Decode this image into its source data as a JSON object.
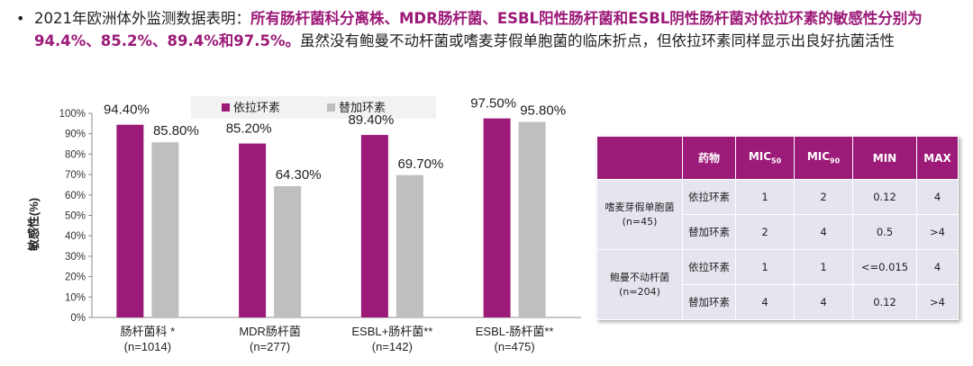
{
  "bullet": {
    "symbol": "•",
    "part1": "2021年欧洲体外监测数据表明：",
    "highlight": "所有肠杆菌科分离株、MDR肠杆菌、ESBL阳性肠杆菌和ESBL阴性肠杆菌对依拉环素的敏感性分别为94.4%、85.2%、89.4%和97.5%。",
    "part2": "虽然没有鲍曼不动杆菌或嗜麦芽假单胞菌的临床折点，但依拉环素同样显示出良好抗菌活性"
  },
  "chart_data": {
    "type": "bar",
    "title": "",
    "xlabel": "",
    "ylabel": "敏感性(%)",
    "ylim": [
      0,
      100
    ],
    "yticks": [
      "0%",
      "10%",
      "20%",
      "30%",
      "40%",
      "50%",
      "60%",
      "70%",
      "80%",
      "90%",
      "100%"
    ],
    "legend_position": "top",
    "categories": [
      {
        "name": "肠杆菌科 *",
        "n": "(n=1014)"
      },
      {
        "name": "MDR肠杆菌",
        "n": "(n=277)"
      },
      {
        "name": "ESBL+肠杆菌**",
        "n": "(n=142)"
      },
      {
        "name": "ESBL-肠杆菌**",
        "n": "(n=475)"
      }
    ],
    "series": [
      {
        "name": "依拉环素",
        "color": "#9c1a78",
        "values": [
          94.4,
          85.2,
          89.4,
          97.5
        ],
        "labels": [
          "94.40%",
          "85.20%",
          "89.40%",
          "97.50%"
        ]
      },
      {
        "name": "替加环素",
        "color": "#bfbfbf",
        "values": [
          85.8,
          64.3,
          69.7,
          95.8
        ],
        "labels": [
          "85.80%",
          "64.30%",
          "69.70%",
          "95.80%"
        ]
      }
    ]
  },
  "table": {
    "headers": [
      "药物",
      "MIC",
      "MIC",
      "MIN",
      "MAX"
    ],
    "header_subs": [
      "",
      "50",
      "90",
      "",
      ""
    ],
    "groups": [
      {
        "organism": "嗜麦芽假单胞菌(n=45)",
        "rows": [
          {
            "drug": "依拉环素",
            "mic50": "1",
            "mic90": "2",
            "min": "0.12",
            "max": "4"
          },
          {
            "drug": "替加环素",
            "mic50": "2",
            "mic90": "4",
            "min": "0.5",
            "max": ">4"
          }
        ]
      },
      {
        "organism": "鲍曼不动杆菌(n=204)",
        "rows": [
          {
            "drug": "依拉环素",
            "mic50": "1",
            "mic90": "1",
            "min": "<=0.015",
            "max": "4"
          },
          {
            "drug": "替加环素",
            "mic50": "4",
            "mic90": "4",
            "min": "0.12",
            "max": ">4"
          }
        ]
      }
    ]
  }
}
